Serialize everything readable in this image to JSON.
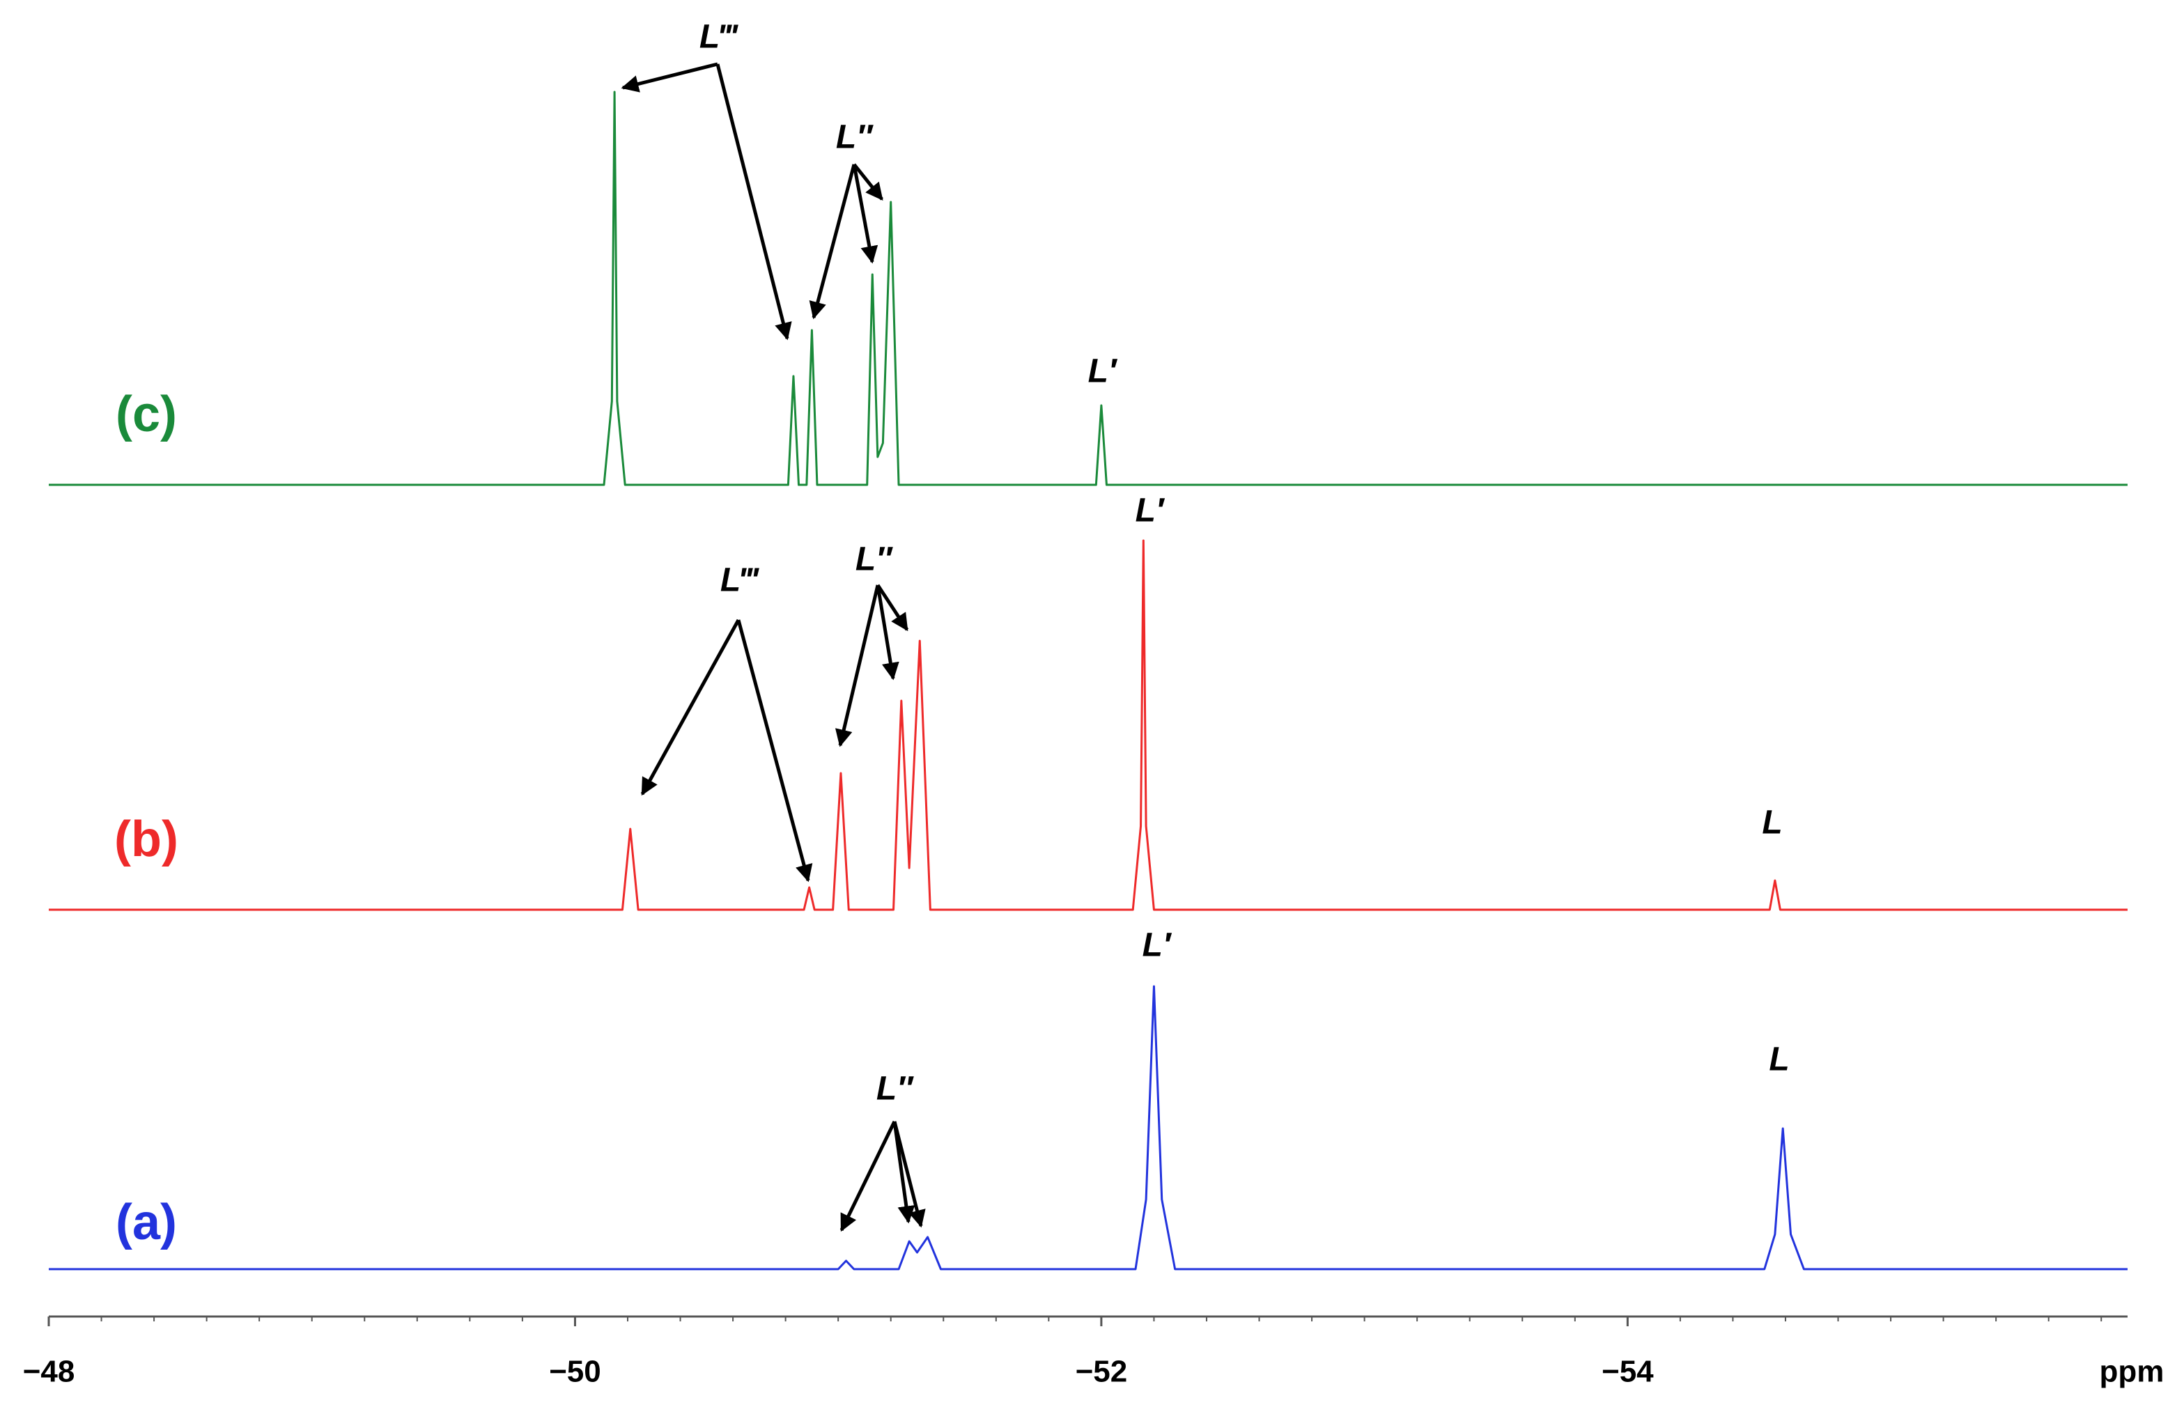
{
  "chart_data": {
    "type": "line",
    "xlabel": "ppm",
    "xlim": [
      -48,
      -55.9
    ],
    "xticks": [
      {
        "value": -48,
        "label": "−48"
      },
      {
        "value": -50,
        "label": "−50"
      },
      {
        "value": -52,
        "label": "−52"
      },
      {
        "value": -54,
        "label": "−54"
      }
    ],
    "xminorticks": [
      -48.2,
      -48.4,
      -48.6,
      -48.8,
      -49.0,
      -49.2,
      -49.4,
      -49.6,
      -49.8,
      -50.2,
      -50.4,
      -50.6,
      -50.8,
      -51.0,
      -51.2,
      -51.4,
      -51.6,
      -51.8,
      -52.2,
      -52.4,
      -52.6,
      -52.8,
      -53.0,
      -53.2,
      -53.4,
      -53.6,
      -53.8,
      -54.2,
      -54.4,
      -54.6,
      -54.8,
      -55.0,
      -55.2,
      -55.4,
      -55.6,
      -55.8
    ],
    "ylim": [
      0,
      300
    ],
    "series": [
      {
        "name": "(c)",
        "color": "#1a8a3a",
        "x": [
          -48.0,
          -50.11,
          -50.14,
          -50.15,
          -50.16,
          -50.19,
          -50.81,
          -50.83,
          -50.85,
          -50.88,
          -50.9,
          -50.92,
          -51.11,
          -51.13,
          -51.15,
          -51.17,
          -51.2,
          -51.23,
          -51.98,
          -52.0,
          -52.02,
          -55.9
        ],
        "values": [
          0,
          0,
          60,
          282,
          60,
          0,
          0,
          78,
          0,
          0,
          111,
          0,
          0,
          151,
          20,
          30,
          203,
          0,
          0,
          57,
          0,
          0
        ],
        "annotations": [
          "L‴",
          "L″",
          "L′"
        ]
      },
      {
        "name": "(b)",
        "color": "#ee2a2a",
        "x": [
          -48.0,
          -50.18,
          -50.21,
          -50.24,
          -50.87,
          -50.89,
          -50.91,
          -50.98,
          -51.01,
          -51.04,
          -51.21,
          -51.24,
          -51.27,
          -51.31,
          -51.35,
          -52.12,
          -52.15,
          -52.16,
          -52.17,
          -52.2,
          -54.54,
          -54.56,
          -54.58,
          -55.9
        ],
        "values": [
          0,
          0,
          58,
          0,
          0,
          16,
          0,
          0,
          98,
          0,
          0,
          150,
          30,
          193,
          0,
          0,
          60,
          265,
          60,
          0,
          0,
          21,
          0,
          0
        ],
        "annotations": [
          "L‴",
          "L″",
          "L′",
          "L"
        ]
      },
      {
        "name": "(a)",
        "color": "#2233dd",
        "x": [
          -48.0,
          -51.0,
          -51.03,
          -51.06,
          -51.23,
          -51.27,
          -51.3,
          -51.34,
          -51.39,
          -52.13,
          -52.17,
          -52.2,
          -52.23,
          -52.28,
          -54.52,
          -54.56,
          -54.59,
          -54.62,
          -54.67,
          -55.9
        ],
        "values": [
          0,
          0,
          6,
          0,
          0,
          20,
          12,
          23,
          0,
          0,
          50,
          203,
          50,
          0,
          0,
          25,
          101,
          25,
          0,
          0
        ],
        "annotations": [
          "L″",
          "L′",
          "L"
        ]
      }
    ]
  }
}
